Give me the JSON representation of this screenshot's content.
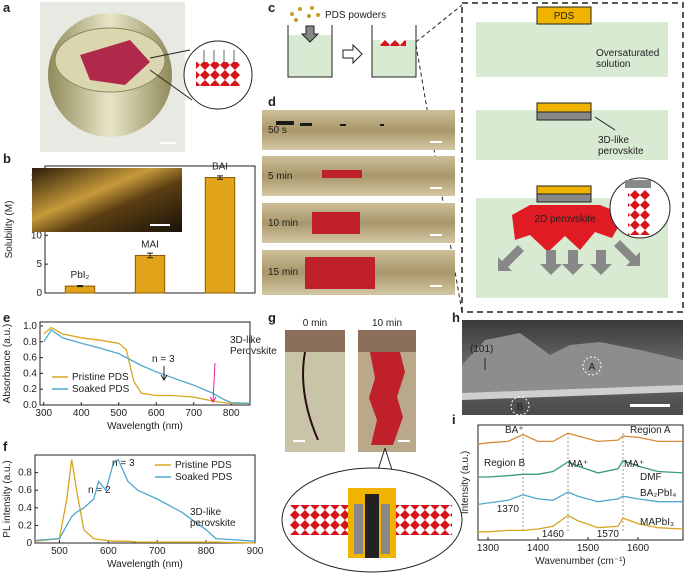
{
  "panel_labels": [
    "a",
    "b",
    "c",
    "d",
    "e",
    "f",
    "g",
    "h",
    "i"
  ],
  "diagram": {
    "powders": "PDS powders",
    "pds": "PDS",
    "solution": [
      "Oversaturated",
      "solution"
    ],
    "perovskite_3d": [
      "3D-like",
      "perovskite"
    ],
    "perovskite_2d": "2D perovskite"
  },
  "photos": {
    "d_times": [
      "50 s",
      "5 min",
      "10 min",
      "15 min"
    ],
    "g_times": [
      "0 min",
      "10 min"
    ]
  },
  "sem": {
    "plane": "(101)",
    "region_a": "A",
    "region_b": "B"
  },
  "chart_data": [
    {
      "type": "bar",
      "ylabel": "Solubility (M)",
      "categories": [
        "PbI₂",
        "MAI",
        "BAI"
      ],
      "values": [
        1.2,
        6.5,
        20
      ],
      "errors": [
        0.1,
        0.4,
        0.3
      ],
      "color": "#e0a31a",
      "ylim": [
        0,
        22
      ],
      "yticks": [
        0,
        5,
        10,
        15,
        20
      ]
    },
    {
      "type": "line",
      "xlabel": "Wavelength (nm)",
      "ylabel": "Absorbance (a.u.)",
      "legend": "lower left",
      "x": [
        300,
        320,
        350,
        400,
        450,
        500,
        520,
        540,
        560,
        600,
        640,
        700,
        750,
        780,
        800,
        850
      ],
      "series": [
        {
          "name": "Pristine PDS",
          "color": "#d9a520",
          "values": [
            0.9,
            0.98,
            0.9,
            0.85,
            0.82,
            0.78,
            0.7,
            0.3,
            0.15,
            0.12,
            0.12,
            0.1,
            0.05,
            0.03,
            0.02,
            0.02
          ]
        },
        {
          "name": "Soaked PDS",
          "color": "#4fa8d0",
          "values": [
            0.8,
            0.95,
            0.85,
            0.78,
            0.72,
            0.65,
            0.6,
            0.55,
            0.5,
            0.42,
            0.35,
            0.25,
            0.15,
            0.07,
            0.03,
            0.02
          ]
        }
      ],
      "annotations": [
        [
          "n = 3"
        ],
        [
          "3D-like",
          "Perovskite"
        ]
      ],
      "xlim": [
        290,
        850
      ],
      "ylim": [
        0,
        1.05
      ],
      "xticks": [
        300,
        400,
        500,
        600,
        700,
        800
      ],
      "yticks": [
        {
          "value": 0,
          "label": "0.0"
        },
        0.2,
        0.4,
        0.6,
        0.8,
        {
          "value": 1,
          "label": "1.0"
        }
      ]
    },
    {
      "type": "line",
      "xlabel": "Wavelength (nm)",
      "ylabel": "PL intensity (a.u.)",
      "legend": "upper right",
      "x": [
        450,
        500,
        515,
        525,
        535,
        550,
        570,
        580,
        595,
        610,
        620,
        640,
        660,
        700,
        750,
        800,
        820,
        900
      ],
      "series": [
        {
          "name": "Pristine PDS",
          "color": "#d9a520",
          "values": [
            0.02,
            0.05,
            0.5,
            0.95,
            0.6,
            0.15,
            0.05,
            0.04,
            0.03,
            0.02,
            0.02,
            0.02,
            0.01,
            0.01,
            0.01,
            0.01,
            0.01,
            0
          ]
        },
        {
          "name": "Soaked PDS",
          "color": "#4fa8d0",
          "values": [
            0.03,
            0.05,
            0.2,
            0.3,
            0.35,
            0.4,
            0.5,
            0.7,
            0.6,
            0.9,
            0.95,
            0.7,
            0.6,
            0.5,
            0.35,
            0.15,
            0.05,
            0.02
          ]
        }
      ],
      "annotations": [
        [
          "n = 2"
        ],
        [
          "n = 3"
        ],
        [
          "3D-like",
          "perovskite"
        ]
      ],
      "xlim": [
        450,
        900
      ],
      "ylim": [
        0,
        1.0
      ],
      "xticks": [
        500,
        600,
        700,
        800,
        900
      ],
      "yticks": [
        0,
        0.2,
        0.4,
        0.6,
        0.8
      ]
    },
    {
      "type": "line",
      "xlabel": "Wavenumber (cm⁻¹)",
      "ylabel": "Intensity (a.u.)",
      "legend": "inline",
      "x": [
        1280,
        1300,
        1340,
        1370,
        1400,
        1430,
        1460,
        1480,
        1520,
        1560,
        1570,
        1600,
        1640,
        1690
      ],
      "series": [
        {
          "name": "Region A",
          "color": "#d98a3a",
          "values": [
            3.5,
            3.55,
            3.6,
            3.85,
            3.6,
            3.6,
            3.9,
            3.8,
            3.6,
            3.65,
            3.8,
            3.75,
            3.6,
            3.6
          ]
        },
        {
          "name": "Region B",
          "color": "#3a9a7a",
          "values": [
            2.3,
            2.3,
            2.35,
            2.4,
            2.4,
            2.5,
            2.85,
            2.7,
            2.45,
            2.6,
            2.9,
            2.7,
            2.5,
            2.45
          ]
        },
        {
          "name": "BA₂PbI₄",
          "color": "#4fa8d0",
          "values": [
            1.3,
            1.35,
            1.45,
            1.65,
            1.5,
            1.45,
            1.75,
            1.6,
            1.4,
            1.5,
            1.6,
            1.5,
            1.4,
            1.4
          ]
        },
        {
          "name": "MAPbI₃",
          "color": "#d9a520",
          "values": [
            0.3,
            0.3,
            0.35,
            0.35,
            0.4,
            0.5,
            0.9,
            0.7,
            0.45,
            0.5,
            0.8,
            0.6,
            0.45,
            0.4
          ]
        }
      ],
      "annotations": [
        [
          "BA⁺"
        ],
        [
          "MA⁺"
        ],
        [
          "MA⁺"
        ],
        [
          "DMF"
        ]
      ],
      "reference_lines": [
        1370,
        1460,
        1570
      ],
      "xlim": [
        1280,
        1690
      ],
      "ylim": [
        0,
        4.2
      ],
      "xticks": [
        1300,
        1400,
        1500,
        1600
      ]
    }
  ]
}
